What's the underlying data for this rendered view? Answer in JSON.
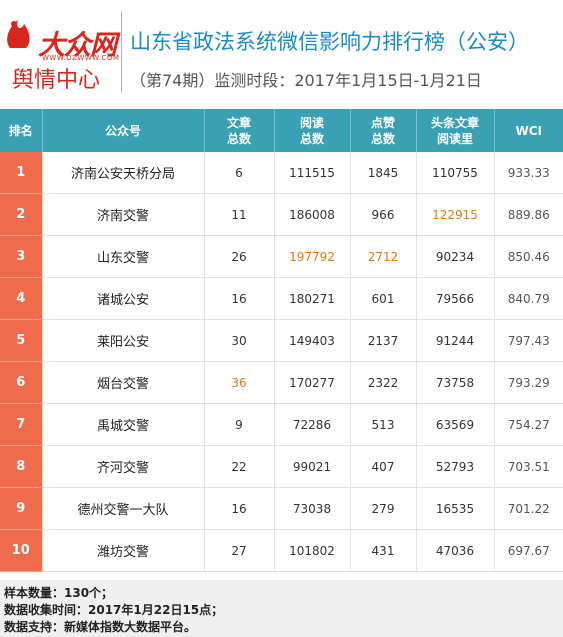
{
  "header": {
    "logo_brand": "大众网",
    "logo_url": "WWW.DZWWW.COM",
    "logo_sub": "舆情中心",
    "title": "山东省政法系统微信影响力排行榜（公安）",
    "subtitle": "（第74期）监测时段：2017年1月15日-1月21日"
  },
  "table": {
    "headers": {
      "rank": "排名",
      "name": "公众号",
      "articles_1": "文章",
      "articles_2": "总数",
      "reads_1": "阅读",
      "reads_2": "总数",
      "likes_1": "点赞",
      "likes_2": "总数",
      "headline_1": "头条文章",
      "headline_2": "阅读里",
      "wci": "WCI"
    },
    "rows": [
      {
        "rank": "1",
        "name": "济南公安天桥分局",
        "articles": "6",
        "reads": "111515",
        "likes": "1845",
        "headline": "110755",
        "wci": "933.33"
      },
      {
        "rank": "2",
        "name": "济南交警",
        "articles": "11",
        "reads": "186008",
        "likes": "966",
        "headline": "122915",
        "wci": "889.86"
      },
      {
        "rank": "3",
        "name": "山东交警",
        "articles": "26",
        "reads": "197792",
        "likes": "2712",
        "headline": "90234",
        "wci": "850.46"
      },
      {
        "rank": "4",
        "name": "诸城公安",
        "articles": "16",
        "reads": "180271",
        "likes": "601",
        "headline": "79566",
        "wci": "840.79"
      },
      {
        "rank": "5",
        "name": "莱阳公安",
        "articles": "30",
        "reads": "149403",
        "likes": "2137",
        "headline": "91244",
        "wci": "797.43"
      },
      {
        "rank": "6",
        "name": "烟台交警",
        "articles": "36",
        "reads": "170277",
        "likes": "2322",
        "headline": "73758",
        "wci": "793.29"
      },
      {
        "rank": "7",
        "name": "禹城交警",
        "articles": "9",
        "reads": "72286",
        "likes": "513",
        "headline": "63569",
        "wci": "754.27"
      },
      {
        "rank": "8",
        "name": "齐河交警",
        "articles": "22",
        "reads": "99021",
        "likes": "407",
        "headline": "52793",
        "wci": "703.51"
      },
      {
        "rank": "9",
        "name": "德州交警一大队",
        "articles": "16",
        "reads": "73038",
        "likes": "279",
        "headline": "16535",
        "wci": "701.22"
      },
      {
        "rank": "10",
        "name": "潍坊交警",
        "articles": "27",
        "reads": "101802",
        "likes": "431",
        "headline": "47036",
        "wci": "697.67"
      }
    ]
  },
  "footer": {
    "line1": "样本数量：130个；",
    "line2": "数据收集时间：2017年1月22日15点；",
    "line3": "数据支持：新媒体指数大数据平台。"
  },
  "colors": {
    "accent_blue": "#1a8cc4",
    "header_teal": "#3aa0b4",
    "rank_orange": "#f06a4c",
    "highlight": "#e07a12",
    "brand_red": "#d8261c"
  }
}
